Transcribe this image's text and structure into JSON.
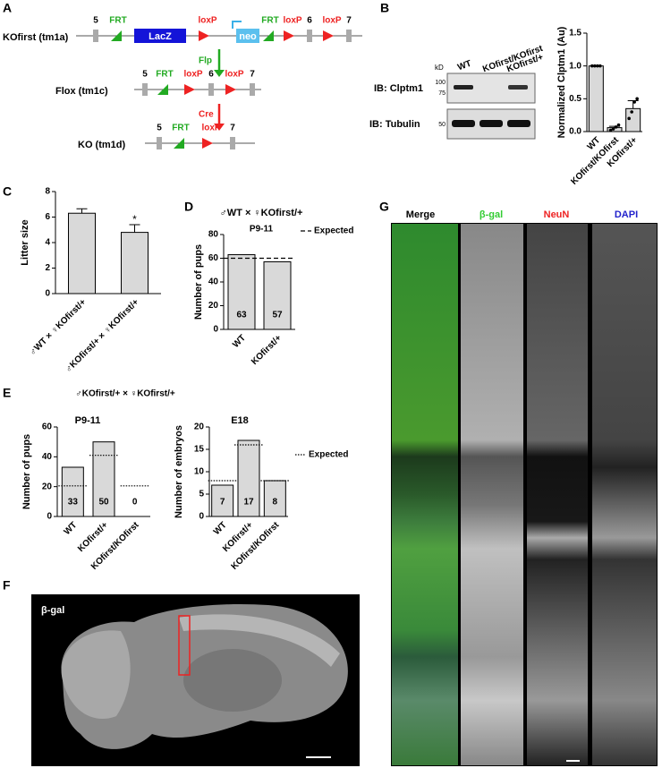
{
  "panels": {
    "a": "A",
    "b": "B",
    "c": "C",
    "d": "D",
    "e": "E",
    "f": "F",
    "g": "G"
  },
  "construct": {
    "rows": [
      {
        "label": "KOfirst (tm1a)",
        "features": [
          "5",
          "FRT",
          "LacZ",
          "loxP",
          "neo",
          "FRT",
          "loxP",
          "6",
          "loxP",
          "7"
        ]
      },
      {
        "label": "Flox (tm1c)",
        "features": [
          "5",
          "FRT",
          "loxP",
          "6",
          "loxP",
          "7"
        ]
      },
      {
        "label": "KO (tm1d)",
        "features": [
          "5",
          "FRT",
          "loxP",
          "7"
        ]
      }
    ],
    "steps": [
      "Flp",
      "Cre"
    ]
  },
  "blot": {
    "rows": [
      "IB: Clptm1",
      "IB: Tubulin"
    ],
    "unit": "kD",
    "markers": [
      100,
      75,
      50
    ],
    "lanes": [
      "WT",
      "KOfirst/KOfirst",
      "KOfirst/+"
    ]
  },
  "e_heading": "♂KOfirst/+ × ♀KOfirst/+",
  "image_f": {
    "label": "β-gal"
  },
  "image_g": {
    "channels": [
      "Merge",
      "β-gal",
      "NeuN",
      "DAPI"
    ]
  },
  "chart_data": [
    {
      "type": "bar",
      "y_label": "Normalized Clptm1 (Au)",
      "categories": [
        "WT",
        "KOfirst/KOfirst",
        "KOfirst/+"
      ],
      "values": [
        1.0,
        0.06,
        0.35
      ],
      "errors": [
        0,
        0.02,
        0.12
      ],
      "points": [
        [
          1,
          1,
          1,
          1
        ],
        [
          0.02,
          0.04,
          0.07,
          0.1
        ],
        [
          0.2,
          0.3,
          0.45,
          0.5
        ]
      ],
      "color": "#d9d9d9",
      "ylim": [
        0,
        1.5
      ],
      "yticks": [
        {
          "value": 0,
          "label": "0.0"
        },
        {
          "value": 0.5,
          "label": "0.5"
        },
        {
          "value": 1,
          "label": "1.0"
        },
        {
          "value": 1.5,
          "label": "1.5"
        }
      ]
    },
    {
      "type": "bar",
      "y_label": "Litter size",
      "categories": [
        "♂WT × ♀KOfirst/+",
        "♂KOfirst/+ × ♀KOfirst/+"
      ],
      "values": [
        6.3,
        4.8
      ],
      "errors": [
        0.35,
        0.6
      ],
      "annotation": "*",
      "color": "#d9d9d9",
      "ylim": [
        0,
        8
      ],
      "yticks": [
        0,
        2,
        4,
        6,
        8
      ]
    },
    {
      "type": "bar",
      "title": "♂WT × ♀KOfirst/+",
      "subtitle": "P9-11",
      "y_label": "Number of pups",
      "categories": [
        "WT",
        "KOfirst/+"
      ],
      "values": [
        63,
        57
      ],
      "expected": {
        "name": "Expected",
        "values": [
          60,
          60
        ]
      },
      "color": "#d9d9d9",
      "ylim": [
        0,
        80
      ],
      "yticks": [
        0,
        20,
        40,
        60,
        80
      ]
    },
    {
      "type": "bar",
      "title": "P9-11",
      "y_label": "Number of pups",
      "categories": [
        "WT",
        "KOfirst/+",
        "KOfirst/KOfirst"
      ],
      "values": [
        33,
        50,
        0
      ],
      "expected": {
        "values": [
          20.5,
          41,
          20.5
        ]
      },
      "color": "#d9d9d9",
      "ylim": [
        0,
        60
      ],
      "yticks": [
        0,
        20,
        40,
        60
      ]
    },
    {
      "type": "bar",
      "title": "E18",
      "y_label": "Number of embryos",
      "categories": [
        "WT",
        "KOfirst/+",
        "KOfirst/KOfirst"
      ],
      "values": [
        7,
        17,
        8
      ],
      "expected": {
        "name": "Expected",
        "values": [
          8,
          16,
          8
        ]
      },
      "color": "#d9d9d9",
      "ylim": [
        0,
        20
      ],
      "yticks": [
        0,
        5,
        10,
        15,
        20
      ]
    }
  ]
}
